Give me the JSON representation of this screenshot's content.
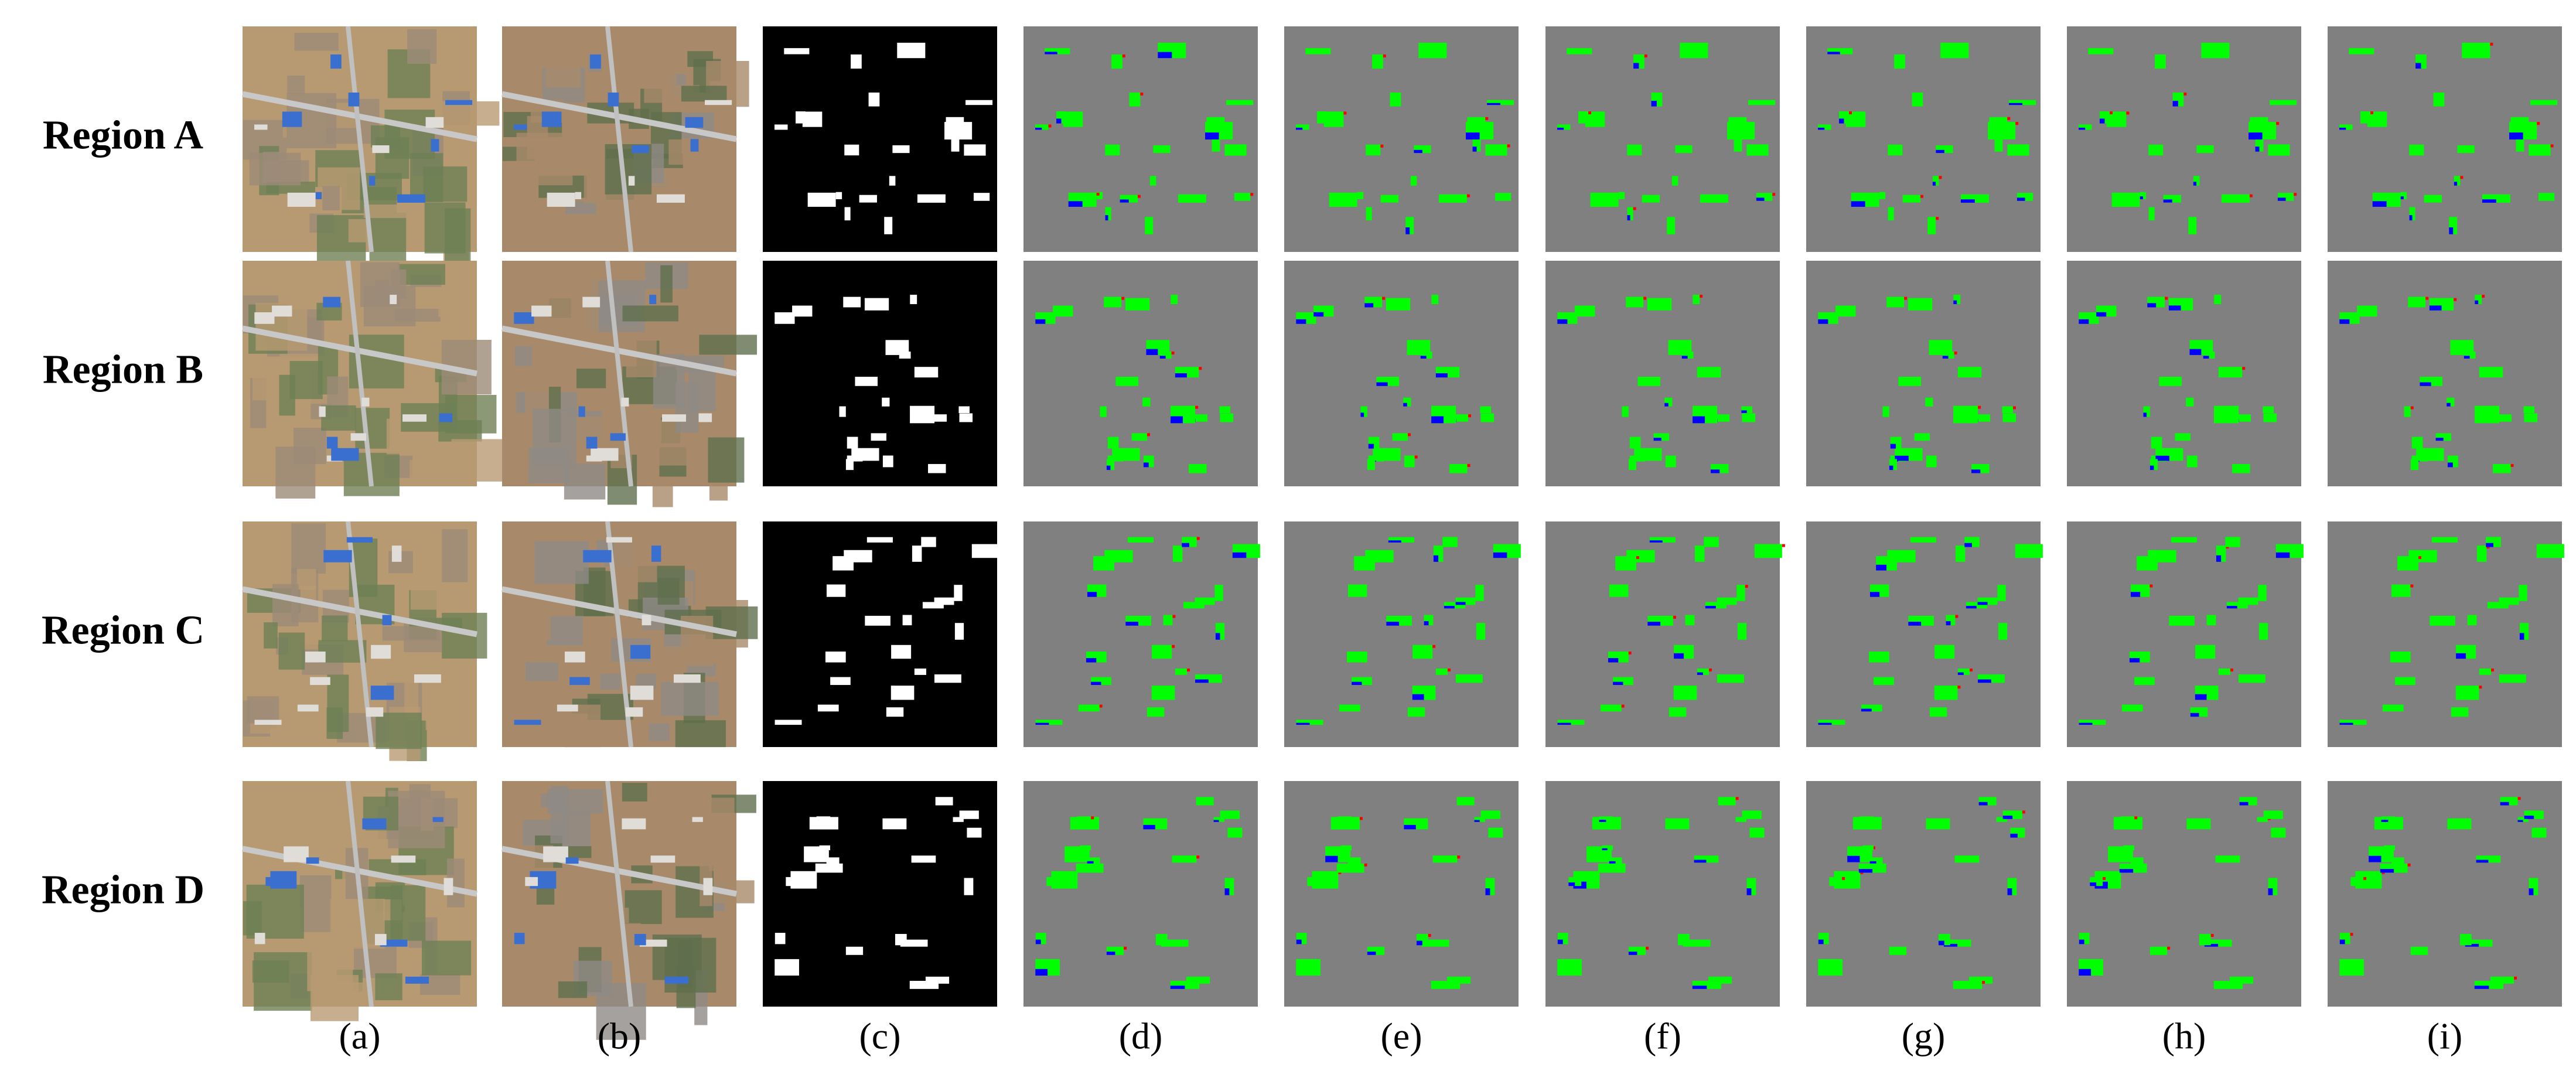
{
  "figure": {
    "rows": [
      "Region A",
      "Region B",
      "Region C",
      "Region D"
    ],
    "columns": [
      "(a)",
      "(b)",
      "(c)",
      "(d)",
      "(e)",
      "(f)",
      "(g)",
      "(h)",
      "(i)"
    ]
  }
}
